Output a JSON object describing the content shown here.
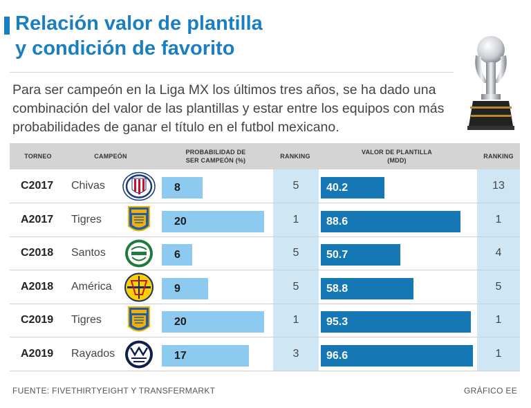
{
  "title": {
    "line1": "Relación valor de plantilla",
    "line2": "y condición de favorito"
  },
  "subtitle": "Para ser campeón en la Liga MX los últimos tres años, se ha dado una combinación del valor de las plantillas y estar entre los equipos con más probabilidades de ganar el título en el futbol mexicano.",
  "colors": {
    "accent": "#1a7fc1",
    "prob_bar": "#8dcaf0",
    "value_bar": "#1578b4",
    "band": "#cfe6f5",
    "header": "#d4d4d4"
  },
  "chart_data": {
    "type": "table",
    "columns": {
      "torneo": "TORNEO",
      "campeon": "CAMPEÓN",
      "prob_line1": "PROBABILIDAD DE",
      "prob_line2": "SER CAMPEÓN (%)",
      "ranking1": "RANKING",
      "valor_line1": "VALOR DE PLANTILLA",
      "valor_line2": "(MDD)",
      "ranking2": "RANKING"
    },
    "prob_max": 20,
    "valor_max": 96.6,
    "rows": [
      {
        "torneo": "C2017",
        "campeon": "Chivas",
        "logo": "chivas-crest",
        "prob": 8,
        "prob_ranking": 5,
        "valor": 40.2,
        "valor_label": "40.2",
        "valor_ranking": 13
      },
      {
        "torneo": "A2017",
        "campeon": "Tigres",
        "logo": "tigres-crest",
        "prob": 20,
        "prob_ranking": 1,
        "valor": 88.6,
        "valor_label": "88.6",
        "valor_ranking": 1
      },
      {
        "torneo": "C2018",
        "campeon": "Santos",
        "logo": "santos-crest",
        "prob": 6,
        "prob_ranking": 5,
        "valor": 50.7,
        "valor_label": "50.7",
        "valor_ranking": 4
      },
      {
        "torneo": "A2018",
        "campeon": "América",
        "logo": "america-crest",
        "prob": 9,
        "prob_ranking": 5,
        "valor": 58.8,
        "valor_label": "58.8",
        "valor_ranking": 5
      },
      {
        "torneo": "C2019",
        "campeon": "Tigres",
        "logo": "tigres-crest",
        "prob": 20,
        "prob_ranking": 1,
        "valor": 95.3,
        "valor_label": "95.3",
        "valor_ranking": 1
      },
      {
        "torneo": "A2019",
        "campeon": "Rayados",
        "logo": "rayados-crest",
        "prob": 17,
        "prob_ranking": 3,
        "valor": 96.6,
        "valor_label": "96.6",
        "valor_ranking": 1
      }
    ]
  },
  "footer": {
    "source": "FUENTE: FIVETHIRTYEIGHT Y TRANSFERMARKT",
    "credit": "GRÁFICO EE"
  }
}
